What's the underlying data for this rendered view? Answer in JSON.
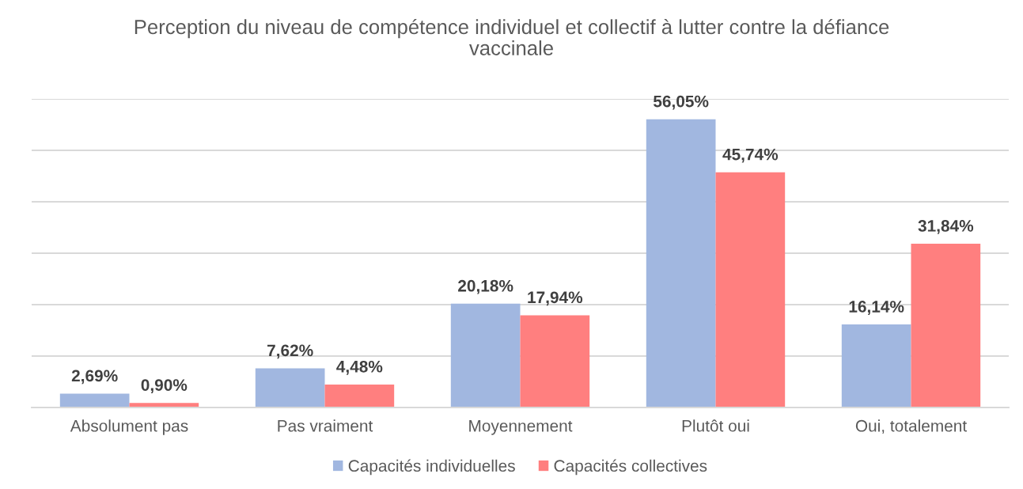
{
  "chart_data": {
    "type": "bar",
    "title": "Perception du niveau de compétence individuel et collectif à lutter contre la défiance vaccinale",
    "categories": [
      "Absolument pas",
      "Pas vraiment",
      "Moyennement",
      "Plutôt oui",
      "Oui, totalement"
    ],
    "series": [
      {
        "name": "Capacités individuelles",
        "color": "#a1b7e0",
        "values": [
          2.69,
          7.62,
          20.18,
          56.05,
          16.14
        ],
        "value_labels": [
          "2,69%",
          "7,62%",
          "20,18%",
          "56,05%",
          "16,14%"
        ]
      },
      {
        "name": "Capacités collectives",
        "color": "#ff7f7f",
        "values": [
          0.9,
          4.48,
          17.94,
          45.74,
          31.84
        ],
        "value_labels": [
          "0,90%",
          "4,48%",
          "17,94%",
          "45,74%",
          "31,84%"
        ]
      }
    ],
    "ylim": [
      0,
      60
    ],
    "yticks": [
      {
        "value": 0,
        "label": null
      },
      {
        "value": 10,
        "label": null
      },
      {
        "value": 20,
        "label": null
      },
      {
        "value": 30,
        "label": null
      },
      {
        "value": 40,
        "label": null
      },
      {
        "value": 50,
        "label": null
      },
      {
        "value": 60,
        "label": null
      }
    ],
    "tick_labels": "x",
    "grid": "y",
    "legend": "bottom"
  }
}
